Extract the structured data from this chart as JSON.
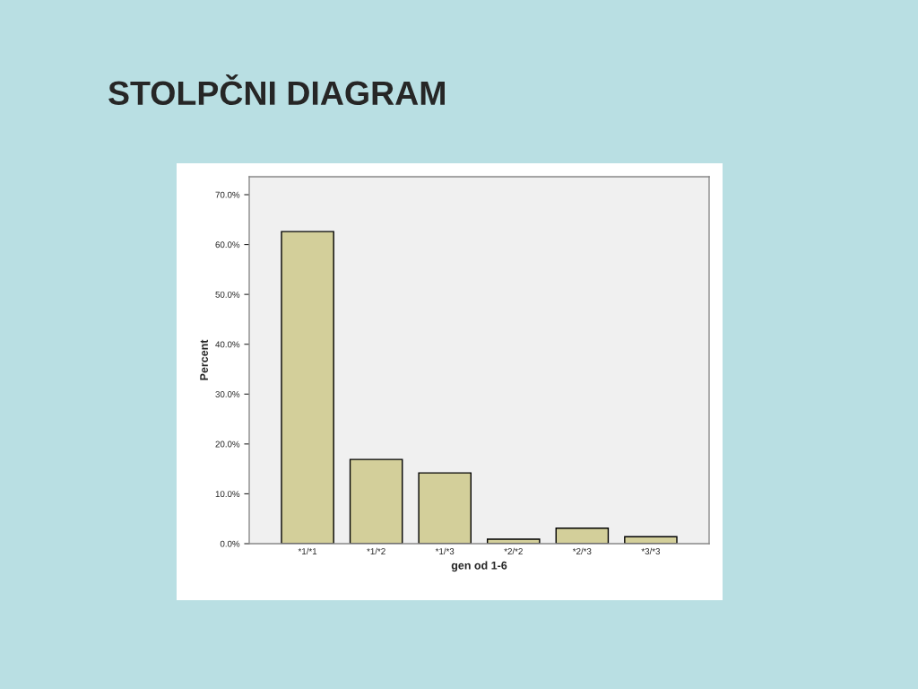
{
  "chart_data": {
    "type": "bar",
    "title": "STOLPČNI DIAGRAM",
    "xlabel": "gen od 1-6",
    "ylabel": "Percent",
    "categories": [
      "*1/*1",
      "*1/*2",
      "*1/*3",
      "*2/*2",
      "*2/*3",
      "*3/*3"
    ],
    "values": [
      62.6,
      16.9,
      14.2,
      0.9,
      3.1,
      1.4
    ],
    "color": "#d3cf9a",
    "ylim": [
      0,
      73.6
    ],
    "yticks": [
      {
        "value": 0,
        "label": "0.0%"
      },
      {
        "value": 10,
        "label": "10.0%"
      },
      {
        "value": 20,
        "label": "20.0%"
      },
      {
        "value": 30,
        "label": "30.0%"
      },
      {
        "value": 40,
        "label": "40.0%"
      },
      {
        "value": 50,
        "label": "50.0%"
      },
      {
        "value": 60,
        "label": "60.0%"
      },
      {
        "value": 70,
        "label": "70.0%"
      }
    ],
    "grid": false,
    "legend": false
  }
}
